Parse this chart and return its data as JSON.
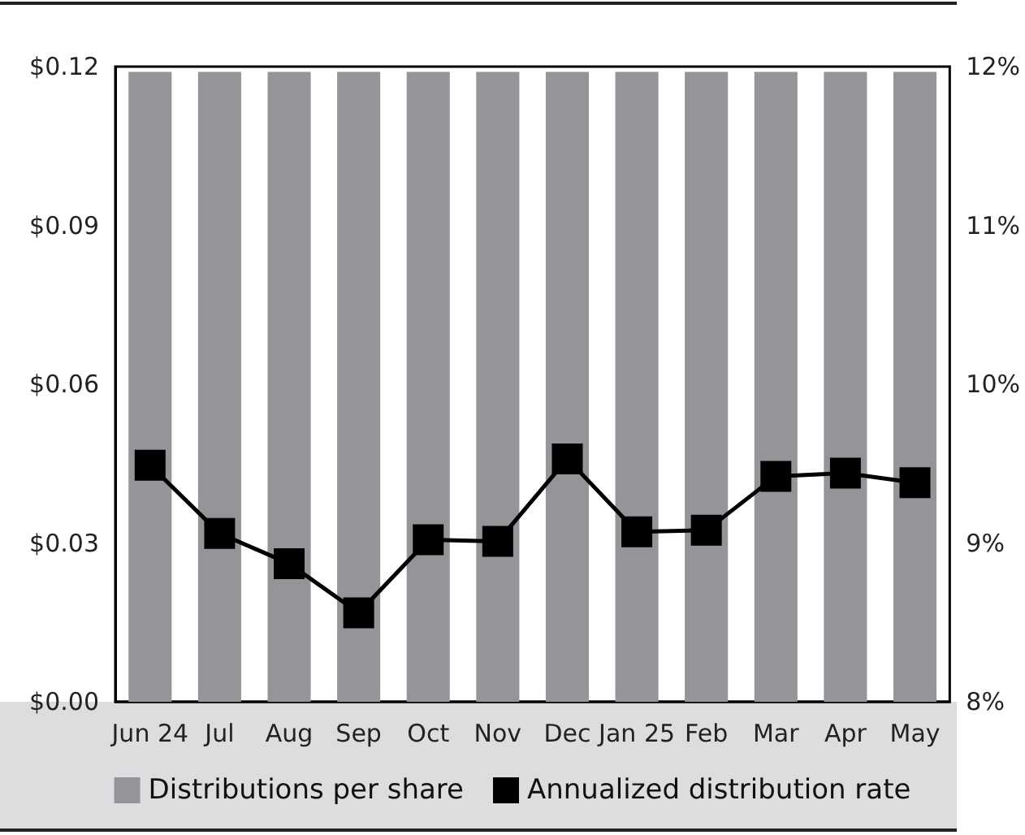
{
  "chart_data": {
    "type": "bar",
    "categories": [
      "Jun 24",
      "Jul",
      "Aug",
      "Sep",
      "Oct",
      "Nov",
      "Dec",
      "Jan 25",
      "Feb",
      "Mar",
      "Apr",
      "May"
    ],
    "series": [
      {
        "name": "Distributions per share",
        "color": "#939598",
        "values": [
          0.119,
          0.119,
          0.119,
          0.119,
          0.119,
          0.119,
          0.119,
          0.119,
          0.119,
          0.119,
          0.119,
          0.119
        ]
      },
      {
        "name": "Annualized distribution rate",
        "type": "line",
        "axis": "y2",
        "color": "#000000",
        "marker": "square",
        "values": [
          9.49,
          9.06,
          8.87,
          8.56,
          9.02,
          9.01,
          9.53,
          9.07,
          9.08,
          9.42,
          9.44,
          9.38
        ]
      }
    ],
    "ylim": [
      0,
      0.12
    ],
    "yticks": [
      {
        "value": 0,
        "label": "$0.00"
      },
      {
        "value": 0.03,
        "label": "$0.03"
      },
      {
        "value": 0.06,
        "label": "$0.06"
      },
      {
        "value": 0.09,
        "label": "$0.09"
      },
      {
        "value": 0.12,
        "label": "$0.12"
      }
    ],
    "y2lim": [
      8,
      12
    ],
    "y2ticks": [
      {
        "value": 8,
        "label": "8%"
      },
      {
        "value": 9,
        "label": "9%"
      },
      {
        "value": 10,
        "label": "10%"
      },
      {
        "value": 11,
        "label": "11%"
      },
      {
        "value": 12,
        "label": "12%"
      }
    ],
    "legend": "bottom"
  }
}
